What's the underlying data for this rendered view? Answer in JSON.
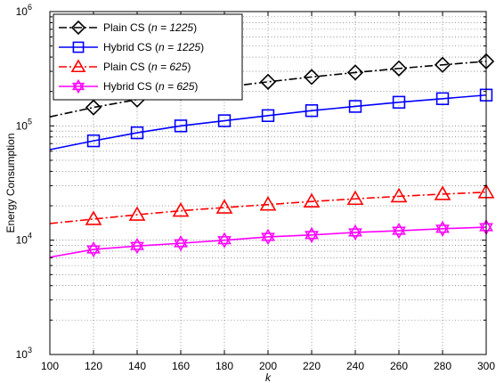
{
  "chart_data": {
    "type": "line",
    "xlabel": "k",
    "ylabel": "Energy Consumption",
    "x": [
      100,
      120,
      140,
      160,
      180,
      200,
      220,
      240,
      260,
      280,
      300
    ],
    "marker_x": [
      120,
      140,
      160,
      180,
      200,
      220,
      240,
      260,
      280,
      300
    ],
    "xlim": [
      100,
      300
    ],
    "ylim": [
      1000,
      1000000
    ],
    "yscale": "log",
    "x_ticks": [
      "100",
      "120",
      "140",
      "160",
      "180",
      "200",
      "220",
      "240",
      "260",
      "280",
      "300"
    ],
    "y_tick_labels": [
      {
        "base": "10",
        "exp": "3",
        "value": 1000
      },
      {
        "base": "10",
        "exp": "4",
        "value": 10000
      },
      {
        "base": "10",
        "exp": "5",
        "value": 100000
      },
      {
        "base": "10",
        "exp": "6",
        "value": 1000000
      }
    ],
    "grid": true,
    "legend_position": "top-left",
    "series": [
      {
        "name_prefix": "Plain CS (",
        "name_param": "n = 1225",
        "name_suffix": ")",
        "color": "#000000",
        "marker": "diamond",
        "linestyle": "dashdot",
        "values": [
          120000,
          145000,
          170000,
          195000,
          218000,
          243000,
          268000,
          293000,
          318000,
          342000,
          367000
        ]
      },
      {
        "name_prefix": "Hybrid CS (",
        "name_param": "n = 1225",
        "name_suffix": ")",
        "color": "#0000ff",
        "marker": "square",
        "linestyle": "solid",
        "values": [
          62000,
          74000,
          87000,
          100000,
          111000,
          123000,
          136000,
          148000,
          161000,
          173000,
          186000
        ]
      },
      {
        "name_prefix": "Plain CS (",
        "name_param": "n = 625",
        "name_suffix": ")",
        "color": "#ff0000",
        "marker": "triangle",
        "linestyle": "dashdot",
        "values": [
          14000,
          15300,
          16700,
          18100,
          19300,
          20500,
          21800,
          23000,
          24200,
          25300,
          26300
        ]
      },
      {
        "name_prefix": "Hybrid CS (",
        "name_param": "n = 625",
        "name_suffix": ")",
        "color": "#ff00ff",
        "marker": "hexagram",
        "linestyle": "solid",
        "values": [
          7100,
          8300,
          8900,
          9400,
          10000,
          10700,
          11100,
          11700,
          12100,
          12600,
          13000
        ]
      }
    ]
  }
}
